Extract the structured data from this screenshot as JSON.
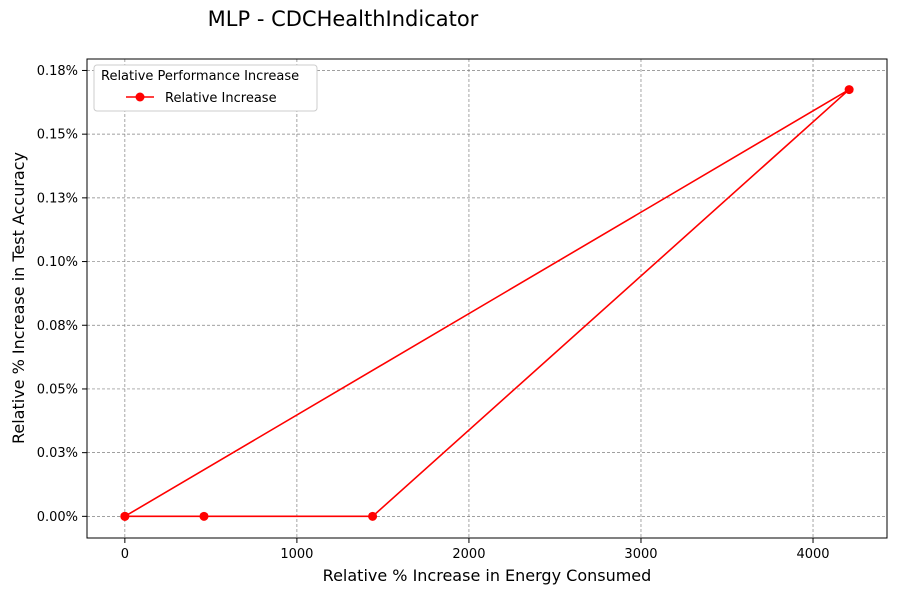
{
  "chart_data": {
    "type": "line",
    "title": "MLP - CDCHealthIndicator",
    "xlabel": "Relative % Increase in Energy Consumed",
    "ylabel": "Relative % Increase in Test Accuracy",
    "xlim": [
      -220,
      4430
    ],
    "ylim": [
      -0.0085,
      0.1795
    ],
    "x_ticks": [
      0,
      1000,
      2000,
      3000,
      4000
    ],
    "x_tick_labels": [
      "0",
      "1000",
      "2000",
      "3000",
      "4000"
    ],
    "y_ticks": [
      0.0,
      0.025,
      0.05,
      0.075,
      0.1,
      0.125,
      0.15,
      0.175
    ],
    "y_tick_labels": [
      "0.00%",
      "0.03%",
      "0.05%",
      "0.08%",
      "0.10%",
      "0.13%",
      "0.15%",
      "0.18%"
    ],
    "grid": true,
    "legend": {
      "title": "Relative Performance Increase",
      "placement": "top-left",
      "entries": [
        "Relative Increase"
      ]
    },
    "series": [
      {
        "name": "Relative Increase",
        "color": "#ff0000",
        "marker": "circle",
        "x": [
          0,
          4210,
          1440,
          460,
          0
        ],
        "y": [
          0.0,
          0.1675,
          0.0,
          0.0,
          0.0
        ]
      }
    ]
  }
}
